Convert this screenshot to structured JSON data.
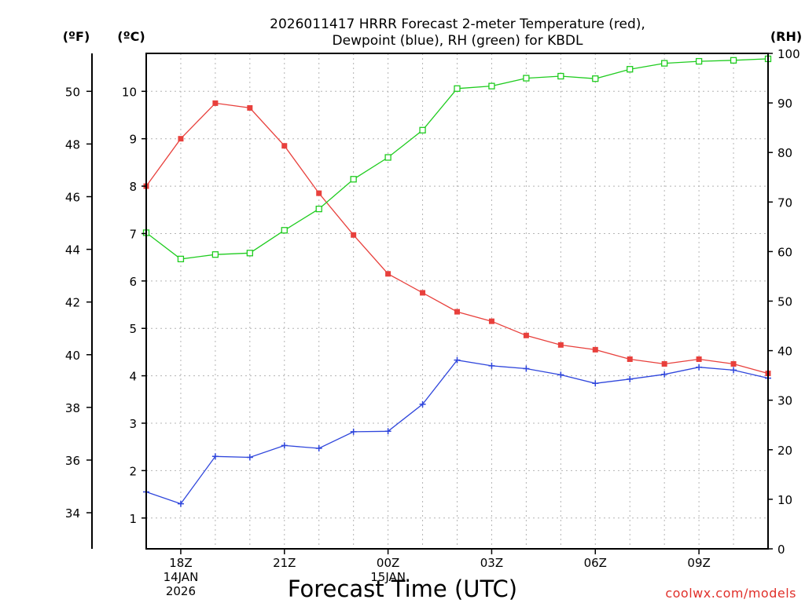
{
  "chart_data": {
    "type": "line",
    "title_lines": [
      "2026011417 HRRR Forecast 2-meter Temperature (red),",
      "Dewpoint (blue), RH (green) for KBDL"
    ],
    "xlabel": "Forecast Time (UTC)",
    "watermark": "coolwx.com/models",
    "units": {
      "f": "(ºF)",
      "c": "(ºC)",
      "rh": "(RH)"
    },
    "x": [
      17,
      18,
      19,
      20,
      21,
      22,
      23,
      24,
      25,
      26,
      27,
      28,
      29,
      30,
      31,
      32,
      33,
      34,
      35
    ],
    "xlim": [
      17,
      35
    ],
    "x_ticks": [
      {
        "x": 18,
        "lines": [
          "18Z",
          "14JAN",
          "2026"
        ]
      },
      {
        "x": 21,
        "lines": [
          "21Z"
        ]
      },
      {
        "x": 24,
        "lines": [
          "00Z",
          "15JAN"
        ]
      },
      {
        "x": 27,
        "lines": [
          "03Z"
        ]
      },
      {
        "x": 30,
        "lines": [
          "06Z"
        ]
      },
      {
        "x": 33,
        "lines": [
          "09Z"
        ]
      }
    ],
    "celsius_axis": {
      "ylim": [
        0.35,
        10.8
      ],
      "ticks": [
        1,
        2,
        3,
        4,
        5,
        6,
        7,
        8,
        9,
        10
      ]
    },
    "fahrenheit_axis": {
      "ticks": [
        34,
        36,
        38,
        40,
        42,
        44,
        46,
        48,
        50
      ]
    },
    "rh_axis": {
      "ylim": [
        0,
        100
      ],
      "ticks": [
        0,
        10,
        20,
        30,
        40,
        50,
        60,
        70,
        80,
        90,
        100
      ]
    },
    "series": [
      {
        "name": "Temperature",
        "axis": "c",
        "color": "#e8403c",
        "marker": "filled-square",
        "values": [
          8.0,
          9.0,
          9.75,
          9.65,
          8.85,
          7.85,
          6.97,
          6.15,
          5.75,
          5.35,
          5.15,
          4.85,
          4.65,
          4.55,
          4.35,
          4.25,
          4.35,
          4.25,
          4.05
        ]
      },
      {
        "name": "Dewpoint",
        "axis": "c",
        "color": "#2f46dc",
        "marker": "plus",
        "values": [
          1.55,
          1.3,
          2.3,
          2.28,
          2.53,
          2.47,
          2.82,
          2.83,
          3.4,
          4.33,
          4.21,
          4.15,
          4.02,
          3.84,
          3.93,
          4.03,
          4.18,
          4.12,
          3.95
        ]
      },
      {
        "name": "RH",
        "axis": "rh",
        "color": "#1fcc1f",
        "marker": "open-square",
        "values": [
          63.8,
          58.5,
          59.4,
          59.7,
          64.3,
          68.6,
          74.6,
          79.0,
          84.5,
          92.9,
          93.4,
          95.0,
          95.4,
          94.9,
          96.8,
          98.0,
          98.4,
          98.6,
          98.9
        ]
      }
    ]
  }
}
